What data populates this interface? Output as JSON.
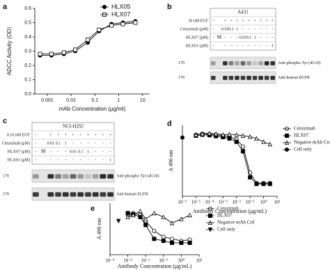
{
  "panel_a": {
    "label": "a",
    "type": "line",
    "log_x": true,
    "x_label": "mAb Concentration (μg/ml)",
    "y_label": "ADCC Activity (OD)",
    "xlim": [
      0.0003,
      20
    ],
    "ylim": [
      0,
      0.6
    ],
    "xticks": [
      0.001,
      0.01,
      0.1,
      1,
      10
    ],
    "yticks": [
      {
        "value": 0,
        "label": "0.0"
      },
      {
        "value": 0.1,
        "label": "0.1"
      },
      {
        "value": 0.2,
        "label": "0.2"
      },
      {
        "value": 0.3,
        "label": "0.3"
      },
      {
        "value": 0.4,
        "label": "0.4"
      },
      {
        "value": 0.5,
        "label": "0.5"
      },
      {
        "value": 0.6,
        "label": "0.6"
      }
    ],
    "series": [
      {
        "name": "HLX05",
        "marker": "filled-circle",
        "color": "#000000",
        "x": [
          0.0005,
          0.0015,
          0.005,
          0.015,
          0.05,
          0.15,
          0.5,
          1.5,
          5
        ],
        "values": [
          0.27,
          0.27,
          0.28,
          0.3,
          0.36,
          0.44,
          0.49,
          0.5,
          0.51
        ]
      },
      {
        "name": "HLX07",
        "marker": "open-square",
        "color": "#000000",
        "x": [
          0.0005,
          0.0015,
          0.005,
          0.015,
          0.05,
          0.15,
          0.5,
          1.5,
          5
        ],
        "values": [
          0.28,
          0.28,
          0.29,
          0.31,
          0.38,
          0.45,
          0.48,
          0.49,
          0.5
        ]
      }
    ]
  },
  "panel_b": {
    "label": "b",
    "cell_line": "A431",
    "marker_lane": "M",
    "marker_after": 0,
    "rows": [
      {
        "label": "30 nM EGF",
        "lanes": [
          "-",
          "+",
          "+",
          "+",
          "+",
          "+",
          "+",
          "+",
          "+",
          "+"
        ]
      },
      {
        "label": "Cetuximab (μM)",
        "lanes": [
          "-",
          "0.01",
          "0.1",
          "1",
          "-",
          "-",
          "-",
          "-",
          "-",
          "-"
        ]
      },
      {
        "label": "HLX07 (μM)",
        "lanes": [
          "-",
          "-",
          "-",
          "-",
          "0.01",
          "0.1",
          "1",
          "-",
          "-",
          "-"
        ]
      },
      {
        "label": "HLX01 (μM)",
        "lanes": [
          "-",
          "-",
          "-",
          "-",
          "-",
          "-",
          "-",
          "-",
          "-",
          "1"
        ]
      }
    ],
    "blots": [
      {
        "mw": "170",
        "label": "Anti-phospho Tyr (4G10)"
      },
      {
        "mw": "170",
        "label": "Anti-human EGFR"
      }
    ]
  },
  "panel_c": {
    "label": "c",
    "cell_line": "NCI-H292",
    "marker_lane": "M",
    "marker_after": 0,
    "rows": [
      {
        "label": "0.16 nM EGF",
        "lanes": [
          "-",
          "+",
          "+",
          "+",
          "+",
          "+",
          "+",
          "+",
          "+",
          "+"
        ]
      },
      {
        "label": "Cetuximab (μM)",
        "lanes": [
          "-",
          "0.01",
          "0.1",
          "1",
          "-",
          "-",
          "-",
          "-",
          "-",
          "-"
        ]
      },
      {
        "label": "HLX07 (μM)",
        "lanes": [
          "-",
          "-",
          "-",
          "-",
          "0.01",
          "0.1",
          "1",
          "-",
          "-",
          "-"
        ]
      },
      {
        "label": "HLX01 (μM)",
        "lanes": [
          "-",
          "-",
          "-",
          "-",
          "-",
          "-",
          "-",
          "-",
          "-",
          "1"
        ]
      }
    ],
    "blots": [
      {
        "mw": "170",
        "label": "Anti-phospho Tyr (4G10)"
      },
      {
        "mw": "170",
        "label": "Anti-human EGFR"
      }
    ]
  },
  "panel_d": {
    "label": "d",
    "type": "line",
    "log_x": true,
    "x_label": "Antibody Concentration (μg/mL)",
    "y_label": "A 490 nm",
    "xlim": [
      1e-06,
      10
    ],
    "ylim": [
      0.4,
      1.9
    ],
    "xticks": [
      {
        "value": 1e-06,
        "label": "10⁻⁶"
      },
      {
        "value": 1e-05,
        "label": "10⁻⁵"
      },
      {
        "value": 0.0001,
        "label": "10⁻⁴"
      },
      {
        "value": 0.001,
        "label": "10⁻³"
      },
      {
        "value": 0.01,
        "label": "10⁻²"
      },
      {
        "value": 0.1,
        "label": "10⁻¹"
      },
      {
        "value": 1,
        "label": "10⁰"
      },
      {
        "value": 10,
        "label": "10¹"
      }
    ],
    "series": [
      {
        "name": "Cetuximab",
        "marker": "open-circle",
        "color": "#000000",
        "x": [
          1e-05,
          3e-05,
          0.0001,
          0.0003,
          0.001,
          0.003,
          0.01,
          0.03,
          0.1,
          0.3,
          1,
          3
        ],
        "values": [
          1.7,
          1.72,
          1.71,
          1.7,
          1.68,
          1.66,
          1.6,
          1.45,
          0.9,
          0.68,
          0.68,
          0.68
        ]
      },
      {
        "name": "HLX07",
        "marker": "filled-square",
        "color": "#000000",
        "x": [
          1e-05,
          3e-05,
          0.0001,
          0.0003,
          0.001,
          0.003,
          0.01,
          0.03,
          0.1,
          0.3,
          1,
          3
        ],
        "values": [
          1.68,
          1.7,
          1.69,
          1.67,
          1.65,
          1.62,
          1.55,
          1.35,
          0.8,
          0.66,
          0.66,
          0.66
        ]
      },
      {
        "name": "Negative mAb Ctrl",
        "marker": "open-triangle",
        "color": "#000000",
        "x": [
          1e-05,
          3e-05,
          0.0001,
          0.0003,
          0.001,
          0.003,
          0.01,
          0.03,
          0.1,
          0.3,
          1,
          3
        ],
        "values": [
          1.7,
          1.72,
          1.73,
          1.72,
          1.7,
          1.71,
          1.7,
          1.68,
          1.66,
          1.62,
          1.55,
          1.5
        ]
      },
      {
        "name": "Cell only",
        "marker": "filled-circle",
        "color": "#000000",
        "x": [
          1e-06
        ],
        "values": [
          1.64
        ]
      }
    ]
  },
  "panel_e": {
    "label": "e",
    "type": "line",
    "log_x": true,
    "x_label": "Antibody Concentration (μg/mL)",
    "y_label": "A 490 nm",
    "xlim": [
      0.0001,
      10
    ],
    "ylim": [
      0.6,
      1.9
    ],
    "xticks": [
      {
        "value": 0.0001,
        "label": "10⁻⁴"
      },
      {
        "value": 0.001,
        "label": "10⁻³"
      },
      {
        "value": 0.01,
        "label": "10⁻²"
      },
      {
        "value": 0.1,
        "label": "10⁻¹"
      },
      {
        "value": 1,
        "label": "10⁰"
      },
      {
        "value": 10,
        "label": "10¹"
      }
    ],
    "series": [
      {
        "name": "Cetuximab",
        "marker": "open-circle",
        "color": "#000000",
        "x": [
          0.001,
          0.002,
          0.005,
          0.01,
          0.03,
          0.1,
          0.3,
          1,
          3
        ],
        "values": [
          1.6,
          1.65,
          1.6,
          1.45,
          1.2,
          1.05,
          1.0,
          0.95,
          0.98
        ]
      },
      {
        "name": "HLX07",
        "marker": "filled-square",
        "color": "#000000",
        "x": [
          0.001,
          0.002,
          0.005,
          0.01,
          0.03,
          0.1,
          0.3,
          1,
          3
        ],
        "values": [
          1.65,
          1.62,
          1.55,
          1.35,
          1.0,
          0.95,
          0.9,
          0.9,
          0.9
        ]
      },
      {
        "name": "Negative mAb Ctrl",
        "marker": "open-triangle",
        "color": "#000000",
        "x": [
          0.001,
          0.002,
          0.005,
          0.01,
          0.03,
          0.1,
          0.3,
          1,
          3
        ],
        "values": [
          1.55,
          1.6,
          1.7,
          1.5,
          1.65,
          1.55,
          1.4,
          1.5,
          1.6
        ]
      },
      {
        "name": "Cell only",
        "marker": "filled-triangle-down",
        "color": "#000000",
        "x": [
          0.0003
        ],
        "values": [
          1.45
        ]
      }
    ]
  }
}
